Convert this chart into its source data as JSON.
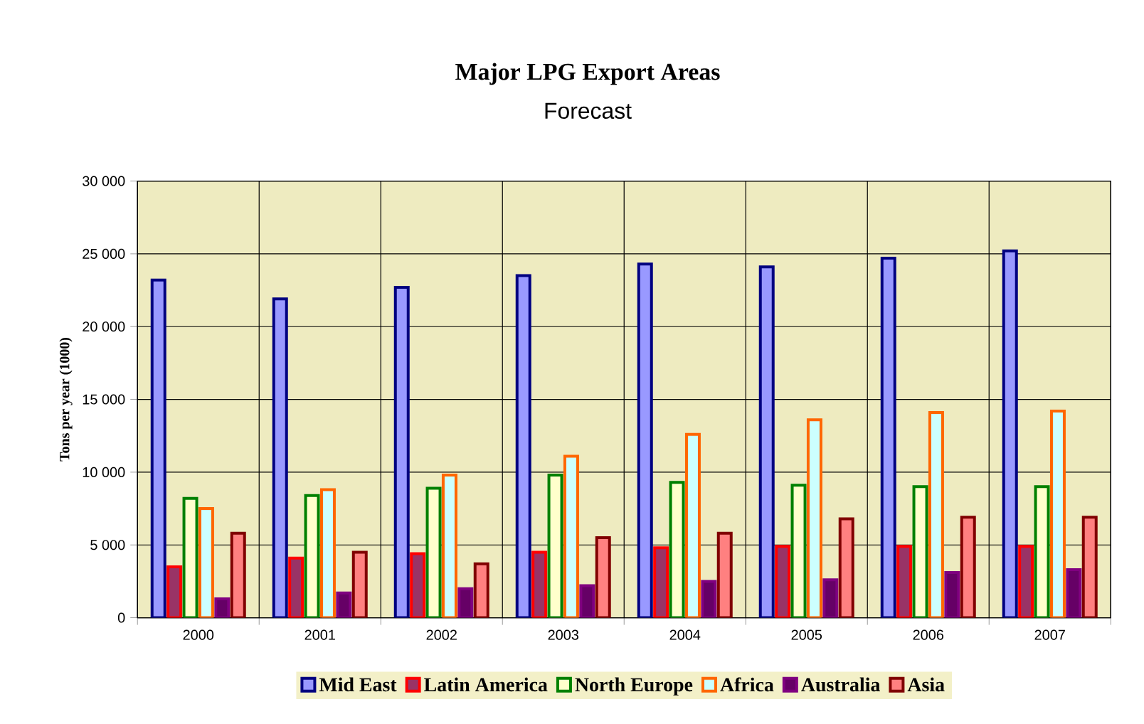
{
  "chart_data": {
    "type": "bar",
    "title": "Major LPG Export Areas",
    "subtitle": "Forecast",
    "ylabel": "Tons per year (1000)",
    "categories": [
      "2000",
      "2001",
      "2002",
      "2003",
      "2004",
      "2005",
      "2006",
      "2007"
    ],
    "series": [
      {
        "name": "Mid East",
        "color": "#9999ff",
        "values": [
          23200,
          21900,
          22700,
          23500,
          24300,
          24100,
          24700,
          25200
        ]
      },
      {
        "name": "Latin America",
        "color": "#993366",
        "values": [
          3500,
          4100,
          4400,
          4500,
          4800,
          4900,
          4900,
          4900
        ]
      },
      {
        "name": "North Europe",
        "color": "#ffffcc",
        "values": [
          8200,
          8400,
          8900,
          9800,
          9300,
          9100,
          9000,
          9000
        ]
      },
      {
        "name": "Africa",
        "color": "#ccffff",
        "values": [
          7500,
          8800,
          9800,
          11100,
          12600,
          13600,
          14100,
          14200
        ]
      },
      {
        "name": "Australia",
        "color": "#660066",
        "values": [
          1300,
          1700,
          2000,
          2200,
          2500,
          2600,
          3100,
          3300
        ]
      },
      {
        "name": "Asia",
        "color": "#ff8080",
        "values": [
          5800,
          4500,
          3700,
          5500,
          5800,
          6800,
          6900,
          6900
        ]
      }
    ],
    "ylim": [
      0,
      30000
    ],
    "yticks": [
      0,
      {
        "value": 5000,
        "label": "5 000"
      },
      {
        "value": 10000,
        "label": "10 000"
      },
      {
        "value": 15000,
        "label": "15 000"
      },
      {
        "value": 20000,
        "label": "20 000"
      },
      {
        "value": 25000,
        "label": "25 000"
      },
      {
        "value": 30000,
        "label": "30 000"
      }
    ],
    "grid": true,
    "legend": "bottom"
  }
}
